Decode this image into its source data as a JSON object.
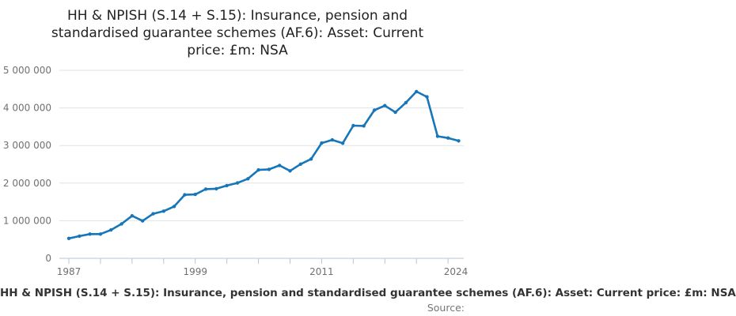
{
  "title": {
    "lines": [
      "HH & NPISH (S.14 + S.15): Insurance, pension and",
      "standardised guarantee schemes (AF.6): Asset: Current",
      "price: £m: NSA"
    ]
  },
  "chart_data": {
    "type": "line",
    "title": "HH & NPISH (S.14 + S.15): Insurance, pension and standardised guarantee schemes (AF.6): Asset: Current price: £m: NSA",
    "xlabel": "",
    "ylabel": "",
    "ylim": [
      0,
      5000000
    ],
    "grid": true,
    "legend_position": "bottom",
    "x": [
      1987,
      1988,
      1989,
      1990,
      1991,
      1992,
      1993,
      1994,
      1995,
      1996,
      1997,
      1998,
      1999,
      2000,
      2001,
      2002,
      2003,
      2004,
      2005,
      2006,
      2007,
      2008,
      2009,
      2010,
      2011,
      2012,
      2013,
      2014,
      2015,
      2016,
      2017,
      2018,
      2019,
      2020,
      2021,
      2022,
      2023,
      2024
    ],
    "series": [
      {
        "name": "HH & NPISH (S.14 + S.15): Insurance, pension and standardised guarantee schemes (AF.6): Asset: Current price: £m: NSA",
        "values": [
          530000,
          590000,
          645000,
          645000,
          755000,
          915000,
          1130000,
          995000,
          1185000,
          1255000,
          1380000,
          1690000,
          1700000,
          1840000,
          1850000,
          1935000,
          2005000,
          2115000,
          2350000,
          2365000,
          2470000,
          2325000,
          2505000,
          2640000,
          3065000,
          3150000,
          3060000,
          3530000,
          3520000,
          3940000,
          4060000,
          3885000,
          4140000,
          4435000,
          4295000,
          3245000,
          3200000,
          3125000
        ]
      }
    ],
    "y_ticks": [
      0,
      1000000,
      2000000,
      3000000,
      4000000,
      5000000
    ],
    "y_tick_labels": [
      "0",
      "1 000 000",
      "2 000 000",
      "3 000 000",
      "4 000 000",
      "5 000 000"
    ],
    "x_minor_tick_years": [
      1987,
      1990,
      1993,
      1996,
      1999,
      2002,
      2005,
      2008,
      2011,
      2014,
      2017,
      2020,
      2023
    ],
    "x_label_years": [
      "1987",
      "1999",
      "2011",
      "2024"
    ]
  },
  "footer": {
    "series_label": "HH & NPISH (S.14 + S.15): Insurance, pension and standardised guarantee schemes (AF.6): Asset: Current price: £m: NSA",
    "source_label": "Source:"
  },
  "colors": {
    "line": "#1776b8",
    "gridline": "#e2e2e2",
    "axis": "#b7c6d5",
    "tick_label": "#707070",
    "title_text": "#222222",
    "background": "#ffffff"
  }
}
